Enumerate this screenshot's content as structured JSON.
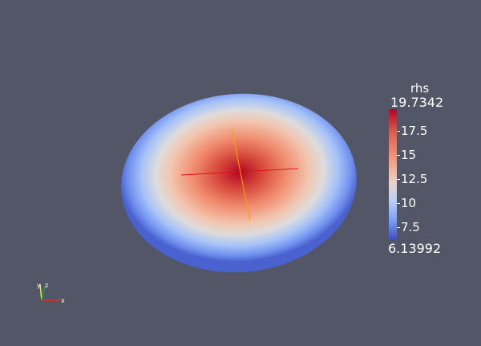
{
  "colorbar": {
    "title": "rhs",
    "max_label": "19.7342",
    "min_label": "6.13992",
    "min_value": 6.13992,
    "max_value": 19.7342,
    "ticks": [
      {
        "value": 17.5,
        "label": "17.5"
      },
      {
        "value": 15,
        "label": "15"
      },
      {
        "value": 12.5,
        "label": "12.5"
      },
      {
        "value": 10,
        "label": "10"
      },
      {
        "value": 7.5,
        "label": "7.5"
      }
    ],
    "colors": {
      "high": "#b40426",
      "mid": "#dddcdc",
      "low": "#3b4cc0"
    }
  },
  "axes": {
    "x_label": "x",
    "y_label": "y",
    "z_label": "z",
    "x_color": "#d73027",
    "y_color": "#f0e442",
    "z_color": "#1a9850"
  },
  "theme": {
    "background": "#525666"
  }
}
